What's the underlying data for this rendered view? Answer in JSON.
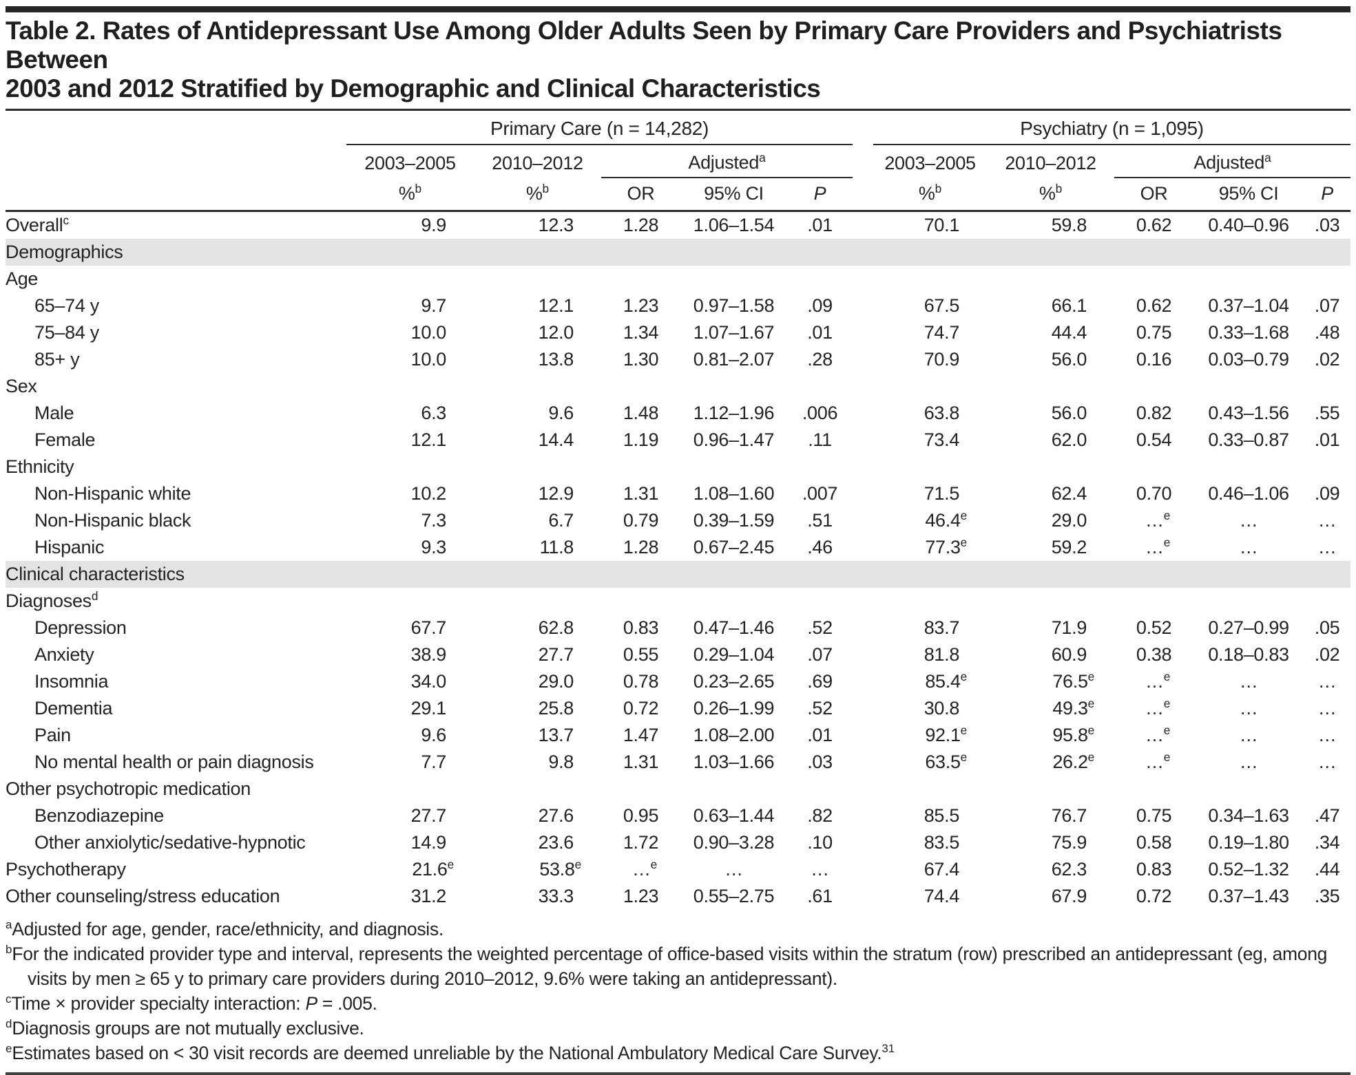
{
  "title": {
    "line1": "Table 2. Rates of Antidepressant Use Among Older Adults Seen by Primary Care Providers and Psychiatrists Between",
    "line2": "2003 and 2012 Stratified by Demographic and Clinical Characteristics"
  },
  "table": {
    "groups": [
      {
        "label": "Primary Care (n = 14,282)"
      },
      {
        "label": "Psychiatry (n = 1,095)"
      }
    ],
    "period_headers": [
      "2003–2005",
      "2010–2012"
    ],
    "adjusted_label": "Adjusted^a",
    "sub_headers": {
      "pct": "%^b",
      "or": "OR",
      "ci": "95% CI",
      "p": "P"
    },
    "rows": [
      {
        "type": "data",
        "indent": 0,
        "label": "Overall^c",
        "values": [
          "9.9",
          "12.3",
          "1.28",
          "1.06–1.54",
          ".01",
          "70.1",
          "59.8",
          "0.62",
          "0.40–0.96",
          ".03"
        ]
      },
      {
        "type": "section",
        "label": "Demographics"
      },
      {
        "type": "subheader",
        "label": "Age"
      },
      {
        "type": "data",
        "indent": 1,
        "label": "65–74 y",
        "values": [
          "9.7",
          "12.1",
          "1.23",
          "0.97–1.58",
          ".09",
          "67.5",
          "66.1",
          "0.62",
          "0.37–1.04",
          ".07"
        ]
      },
      {
        "type": "data",
        "indent": 1,
        "label": "75–84 y",
        "values": [
          "10.0",
          "12.0",
          "1.34",
          "1.07–1.67",
          ".01",
          "74.7",
          "44.4",
          "0.75",
          "0.33–1.68",
          ".48"
        ]
      },
      {
        "type": "data",
        "indent": 1,
        "label": "85+ y",
        "values": [
          "10.0",
          "13.8",
          "1.30",
          "0.81–2.07",
          ".28",
          "70.9",
          "56.0",
          "0.16",
          "0.03–0.79",
          ".02"
        ]
      },
      {
        "type": "subheader",
        "label": "Sex"
      },
      {
        "type": "data",
        "indent": 1,
        "label": "Male",
        "values": [
          "6.3",
          "9.6",
          "1.48",
          "1.12–1.96",
          ".006",
          "63.8",
          "56.0",
          "0.82",
          "0.43–1.56",
          ".55"
        ]
      },
      {
        "type": "data",
        "indent": 1,
        "label": "Female",
        "values": [
          "12.1",
          "14.4",
          "1.19",
          "0.96–1.47",
          ".11",
          "73.4",
          "62.0",
          "0.54",
          "0.33–0.87",
          ".01"
        ]
      },
      {
        "type": "subheader",
        "label": "Ethnicity"
      },
      {
        "type": "data",
        "indent": 1,
        "label": "Non-Hispanic white",
        "values": [
          "10.2",
          "12.9",
          "1.31",
          "1.08–1.60",
          ".007",
          "71.5",
          "62.4",
          "0.70",
          "0.46–1.06",
          ".09"
        ]
      },
      {
        "type": "data",
        "indent": 1,
        "label": "Non-Hispanic black",
        "values": [
          "7.3",
          "6.7",
          "0.79",
          "0.39–1.59",
          ".51",
          "46.4^e",
          "29.0",
          "…^e",
          "…",
          "…"
        ]
      },
      {
        "type": "data",
        "indent": 1,
        "label": "Hispanic",
        "values": [
          "9.3",
          "11.8",
          "1.28",
          "0.67–2.45",
          ".46",
          "77.3^e",
          "59.2",
          "…^e",
          "…",
          "…"
        ]
      },
      {
        "type": "section",
        "label": "Clinical characteristics"
      },
      {
        "type": "subheader",
        "label": "Diagnoses^d"
      },
      {
        "type": "data",
        "indent": 1,
        "label": "Depression",
        "values": [
          "67.7",
          "62.8",
          "0.83",
          "0.47–1.46",
          ".52",
          "83.7",
          "71.9",
          "0.52",
          "0.27–0.99",
          ".05"
        ]
      },
      {
        "type": "data",
        "indent": 1,
        "label": "Anxiety",
        "values": [
          "38.9",
          "27.7",
          "0.55",
          "0.29–1.04",
          ".07",
          "81.8",
          "60.9",
          "0.38",
          "0.18–0.83",
          ".02"
        ]
      },
      {
        "type": "data",
        "indent": 1,
        "label": "Insomnia",
        "values": [
          "34.0",
          "29.0",
          "0.78",
          "0.23–2.65",
          ".69",
          "85.4^e",
          "76.5^e",
          "…^e",
          "…",
          "…"
        ]
      },
      {
        "type": "data",
        "indent": 1,
        "label": "Dementia",
        "values": [
          "29.1",
          "25.8",
          "0.72",
          "0.26–1.99",
          ".52",
          "30.8",
          "49.3^e",
          "…^e",
          "…",
          "…"
        ]
      },
      {
        "type": "data",
        "indent": 1,
        "label": "Pain",
        "values": [
          "9.6",
          "13.7",
          "1.47",
          "1.08–2.00",
          ".01",
          "92.1^e",
          "95.8^e",
          "…^e",
          "…",
          "…"
        ]
      },
      {
        "type": "data",
        "indent": 1,
        "label": "No mental health or pain diagnosis",
        "values": [
          "7.7",
          "9.8",
          "1.31",
          "1.03–1.66",
          ".03",
          "63.5^e",
          "26.2^e",
          "…^e",
          "…",
          "…"
        ]
      },
      {
        "type": "subheader",
        "label": "Other psychotropic medication"
      },
      {
        "type": "data",
        "indent": 1,
        "label": "Benzodiazepine",
        "values": [
          "27.7",
          "27.6",
          "0.95",
          "0.63–1.44",
          ".82",
          "85.5",
          "76.7",
          "0.75",
          "0.34–1.63",
          ".47"
        ]
      },
      {
        "type": "data",
        "indent": 1,
        "label": "Other anxiolytic/sedative-hypnotic",
        "values": [
          "14.9",
          "23.6",
          "1.72",
          "0.90–3.28",
          ".10",
          "83.5",
          "75.9",
          "0.58",
          "0.19–1.80",
          ".34"
        ]
      },
      {
        "type": "data",
        "indent": 0,
        "label": "Psychotherapy",
        "values": [
          "21.6^e",
          "53.8^e",
          "…^e",
          "…",
          "…",
          "67.4",
          "62.3",
          "0.83",
          "0.52–1.32",
          ".44"
        ]
      },
      {
        "type": "data",
        "indent": 0,
        "label": "Other counseling/stress education",
        "values": [
          "31.2",
          "33.3",
          "1.23",
          "0.55–2.75",
          ".61",
          "74.4",
          "67.9",
          "0.72",
          "0.37–1.43",
          ".35"
        ]
      }
    ]
  },
  "footnotes": [
    {
      "marker": "a",
      "text": "Adjusted for age, gender, race/ethnicity, and diagnosis."
    },
    {
      "marker": "b",
      "text": "For the indicated provider type and interval, represents the weighted percentage of office-based visits within the stratum (row) prescribed an antidepressant (eg, among visits by men ≥ 65 y to primary care providers during 2010–2012, 9.6% were taking an antidepressant)."
    },
    {
      "marker": "c",
      "text": "Time × provider specialty interaction: ",
      "italic": "P",
      "text2": " = .005."
    },
    {
      "marker": "d",
      "text": "Diagnosis groups are not mutually exclusive."
    },
    {
      "marker": "e",
      "text": "Estimates based on < 30 visit records are deemed unreliable by the National Ambulatory Medical Care Survey.",
      "sup_end": "31"
    }
  ]
}
